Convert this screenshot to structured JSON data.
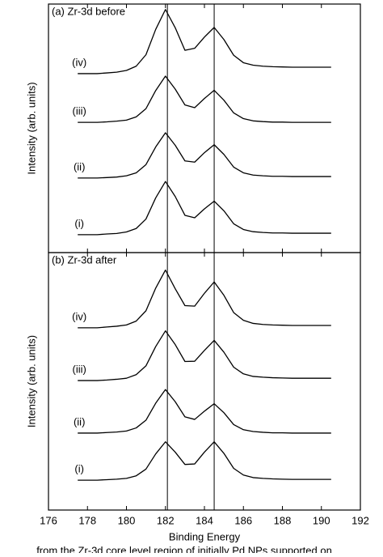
{
  "chart_data": [
    {
      "type": "line",
      "title": "(a) Zr-3d before",
      "ylabel": "Intensity (arb. units)",
      "xlim": [
        176,
        192
      ],
      "ylim": [
        0,
        100
      ],
      "reference_lines": [
        182.1,
        184.5
      ],
      "x": [
        177.5,
        178,
        178.5,
        179,
        179.5,
        180,
        180.5,
        181,
        181.5,
        182,
        182.5,
        183,
        183.5,
        184,
        184.5,
        185,
        185.5,
        186,
        186.5,
        187,
        187.5,
        188,
        188.5,
        189,
        189.5,
        190,
        190.5
      ],
      "series": [
        {
          "name": "(iv)",
          "color": "#000000",
          "values": [
            72,
            72,
            72,
            72.3,
            72.6,
            73.3,
            75.0,
            79.6,
            89.8,
            97.8,
            90.5,
            81.4,
            82.2,
            86.7,
            90.6,
            85.7,
            79.4,
            76.4,
            75.4,
            75.0,
            74.8,
            74.7,
            74.6,
            74.6,
            74.6,
            74.6,
            74.6
          ]
        },
        {
          "name": "(iii)",
          "color": "#000000",
          "values": [
            52.4,
            52.4,
            52.4,
            52.6,
            52.9,
            53.3,
            54.6,
            57.9,
            65.2,
            71.0,
            65.8,
            59.4,
            58.3,
            62.0,
            65.3,
            61.3,
            56.2,
            53.9,
            53.0,
            52.7,
            52.5,
            52.5,
            52.4,
            52.4,
            52.4,
            52.4,
            52.4
          ]
        },
        {
          "name": "(ii)",
          "color": "#000000",
          "values": [
            30,
            30,
            30,
            30.2,
            30.4,
            30.9,
            32.1,
            35.4,
            42.5,
            48.2,
            43.2,
            36.9,
            36.4,
            40.2,
            43.4,
            39.5,
            34.4,
            32.1,
            31.2,
            30.9,
            30.7,
            30.7,
            30.6,
            30.6,
            30.6,
            30.6,
            30.6
          ]
        },
        {
          "name": "(i)",
          "color": "#000000",
          "values": [
            7.2,
            7.2,
            7.2,
            7.5,
            7.7,
            8.3,
            9.7,
            13.5,
            22.0,
            28.6,
            22.6,
            15.0,
            14.0,
            17.6,
            20.7,
            16.8,
            11.6,
            9.3,
            8.4,
            8.1,
            7.9,
            7.9,
            7.8,
            7.8,
            7.8,
            7.8,
            7.8
          ]
        }
      ]
    },
    {
      "type": "line",
      "title": "(b) Zr-3d after",
      "ylabel": "Intensity (arb. units)",
      "xlabel": "Binding Energy",
      "xlim": [
        176,
        192
      ],
      "ylim": [
        0,
        100
      ],
      "xticks": [
        176,
        178,
        180,
        182,
        184,
        186,
        188,
        190,
        192
      ],
      "reference_lines": [
        182.1,
        184.5
      ],
      "x": [
        177.5,
        178,
        178.5,
        179,
        179.5,
        180,
        180.5,
        181,
        181.5,
        182,
        182.5,
        183,
        183.5,
        184,
        184.5,
        185,
        185.5,
        186,
        186.5,
        187,
        187.5,
        188,
        188.5,
        189,
        189.5,
        190,
        190.5
      ],
      "series": [
        {
          "name": "(iv)",
          "color": "#000000",
          "values": [
            70.8,
            70.8,
            70.8,
            71.1,
            71.4,
            71.9,
            73.4,
            77.4,
            86.2,
            93.2,
            86.0,
            79.4,
            79.2,
            84.2,
            88.6,
            83.4,
            76.7,
            73.7,
            72.5,
            72.1,
            71.9,
            71.8,
            71.7,
            71.7,
            71.7,
            71.7,
            71.7
          ]
        },
        {
          "name": "(iii)",
          "color": "#000000",
          "values": [
            50.3,
            50.3,
            50.3,
            50.5,
            50.8,
            51.2,
            52.6,
            56.0,
            63.5,
            69.6,
            64.3,
            57.7,
            57.8,
            62.0,
            65.9,
            61.3,
            55.5,
            52.9,
            51.9,
            51.6,
            51.4,
            51.3,
            51.2,
            51.2,
            51.2,
            51.2,
            51.2
          ]
        },
        {
          "name": "(ii)",
          "color": "#000000",
          "values": [
            29.9,
            29.9,
            29.9,
            30.1,
            30.3,
            30.7,
            31.9,
            34.9,
            41.5,
            46.8,
            42.1,
            36.2,
            35.2,
            38.4,
            41.3,
            37.8,
            33.2,
            31.2,
            30.5,
            30.2,
            30.0,
            30.0,
            29.9,
            29.9,
            29.9,
            29.9,
            29.9
          ]
        },
        {
          "name": "(i)",
          "color": "#000000",
          "values": [
            11.6,
            11.6,
            11.6,
            11.8,
            12.0,
            12.3,
            13.3,
            15.9,
            21.8,
            26.5,
            22.5,
            17.7,
            17.9,
            22.5,
            26.5,
            22.0,
            16.2,
            13.6,
            12.6,
            12.3,
            12.1,
            12.0,
            11.9,
            11.9,
            11.9,
            11.9,
            11.9
          ]
        }
      ]
    }
  ],
  "caption": "from the Zr-3d core level region of initially Pd NPs supported on"
}
